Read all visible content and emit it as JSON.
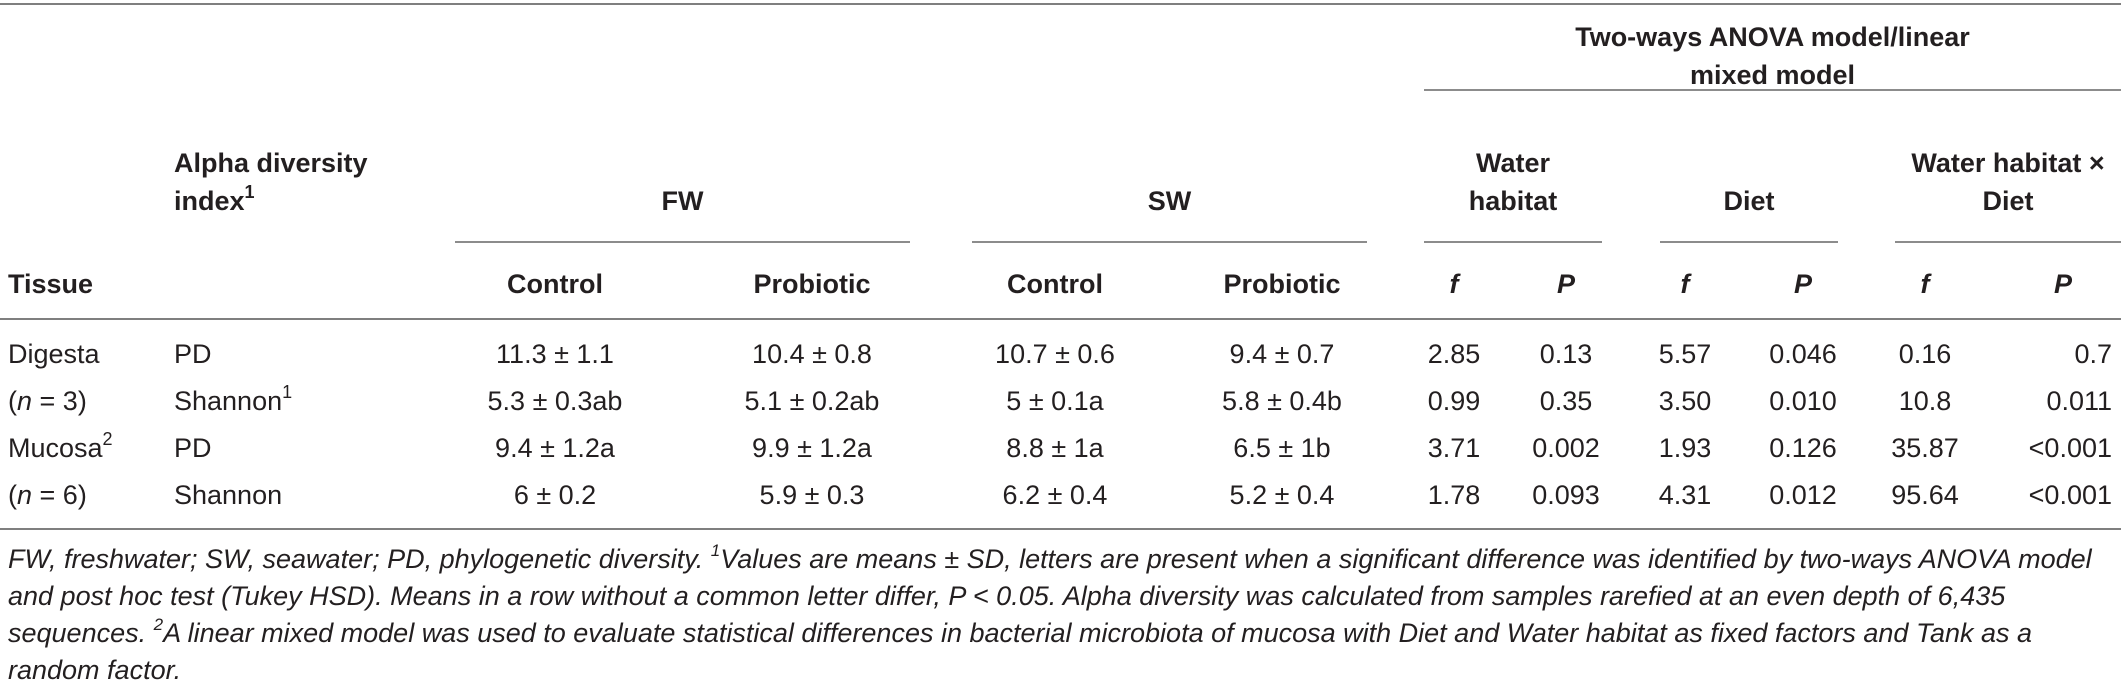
{
  "header": {
    "anova_title_line1": "Two-ways ANOVA model/linear",
    "anova_title_line2": "mixed model",
    "alpha_line1": "Alpha diversity",
    "alpha_line2": "index",
    "alpha_sup": "1",
    "fw": "FW",
    "sw": "SW",
    "water_line1": "Water",
    "water_line2": "habitat",
    "diet": "Diet",
    "inter_line1": "Water habitat ×",
    "inter_line2": "Diet",
    "tissue": "Tissue",
    "fw_control": "Control",
    "fw_probiotic": "Probiotic",
    "sw_control": "Control",
    "sw_probiotic": "Probiotic",
    "f1": "f",
    "p1": "P",
    "f2": "f",
    "p2": "P",
    "f3": "f",
    "p3": "P"
  },
  "rows": [
    {
      "tissue_pre": "Digesta",
      "tissue_italic": "",
      "tissue_post": "",
      "tissue_sup": "",
      "index": "PD",
      "index_sup": "",
      "fw_control": "11.3 ± 1.1",
      "fw_probiotic": "10.4 ± 0.8",
      "sw_control": "10.7 ± 0.6",
      "sw_probiotic": "9.4 ± 0.7",
      "wh_f": "2.85",
      "wh_p": "0.13",
      "diet_f": "5.57",
      "diet_p": "0.046",
      "int_f": "0.16",
      "int_p": "0.7"
    },
    {
      "tissue_pre": "(",
      "tissue_italic": "n",
      "tissue_post": " = 3)",
      "tissue_sup": "",
      "index": "Shannon",
      "index_sup": "1",
      "fw_control": "5.3 ± 0.3ab",
      "fw_probiotic": "5.1 ± 0.2ab",
      "sw_control": "5 ± 0.1a",
      "sw_probiotic": "5.8 ± 0.4b",
      "wh_f": "0.99",
      "wh_p": "0.35",
      "diet_f": "3.50",
      "diet_p": "0.010",
      "int_f": "10.8",
      "int_p": "0.011"
    },
    {
      "tissue_pre": "Mucosa",
      "tissue_italic": "",
      "tissue_post": "",
      "tissue_sup": "2",
      "index": "PD",
      "index_sup": "",
      "fw_control": "9.4 ± 1.2a",
      "fw_probiotic": "9.9 ± 1.2a",
      "sw_control": "8.8 ± 1a",
      "sw_probiotic": "6.5 ± 1b",
      "wh_f": "3.71",
      "wh_p": "0.002",
      "diet_f": "1.93",
      "diet_p": "0.126",
      "int_f": "35.87",
      "int_p": "<0.001"
    },
    {
      "tissue_pre": "(",
      "tissue_italic": "n",
      "tissue_post": " = 6)",
      "tissue_sup": "",
      "index": "Shannon",
      "index_sup": "",
      "fw_control": "6 ± 0.2",
      "fw_probiotic": "5.9 ± 0.3",
      "sw_control": "6.2 ± 0.4",
      "sw_probiotic": "5.2 ± 0.4",
      "wh_f": "1.78",
      "wh_p": "0.093",
      "diet_f": "4.31",
      "diet_p": "0.012",
      "int_f": "95.64",
      "int_p": "<0.001"
    }
  ],
  "footnote": {
    "part1": "FW, freshwater; SW, seawater; PD, phylogenetic diversity. ",
    "sup1": "1",
    "part2": "Values are means ± SD, letters are present when a significant difference was identified by two-ways ANOVA model and post hoc test (Tukey HSD). Means in a row without a common letter differ, P < 0.05. Alpha diversity was calculated from samples rarefied at an even depth of 6,435 sequences. ",
    "sup2": "2",
    "part3": "A linear mixed model was used to evaluate statistical differences in bacterial microbiota of mucosa with Diet and Water habitat as fixed factors and Tank as a random factor."
  }
}
